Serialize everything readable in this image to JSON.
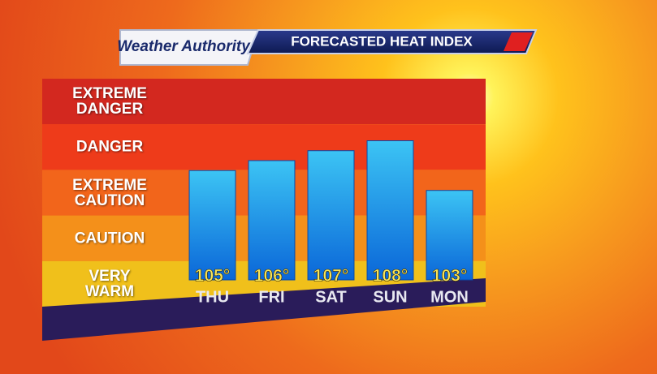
{
  "chart_data": {
    "type": "bar",
    "logo": "Weather Authority",
    "title": "FORECASTED HEAT INDEX",
    "categories": [
      "THU",
      "FRI",
      "SAT",
      "SUN",
      "MON"
    ],
    "values": [
      105,
      106,
      107,
      108,
      103
    ],
    "value_labels": [
      "105°",
      "106°",
      "107°",
      "108°",
      "103°"
    ],
    "color": "#1a8fe6",
    "ylim": [
      94,
      114
    ],
    "bands": [
      {
        "label": "EXTREME DANGER",
        "color": "#d3281f"
      },
      {
        "label": "DANGER",
        "color": "#ee3b1a"
      },
      {
        "label": "EXTREME CAUTION",
        "color": "#f2651b"
      },
      {
        "label": "CAUTION",
        "color": "#f4901a"
      },
      {
        "label": "VERY WARM",
        "color": "#f0c01b"
      }
    ]
  }
}
